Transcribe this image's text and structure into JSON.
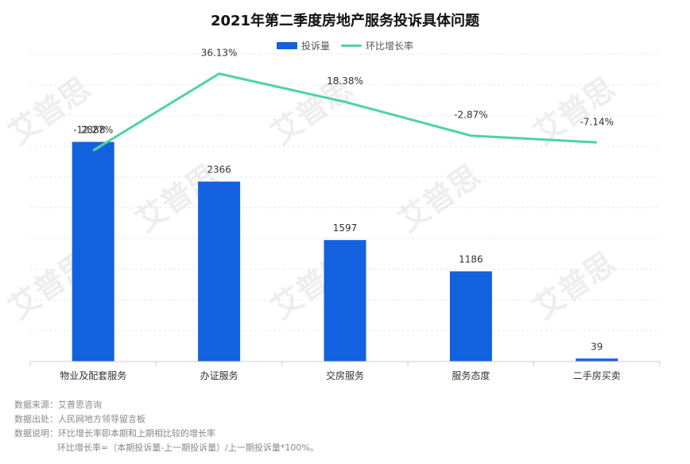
{
  "chart_data": {
    "type": "bar",
    "title": "2021年第二季度房地产服务投诉具体问题",
    "categories": [
      "物业及配套服务",
      "办证服务",
      "交房服务",
      "服务态度",
      "二手房买卖"
    ],
    "series": [
      {
        "name": "投诉量",
        "type": "bar",
        "values": [
          2888,
          2366,
          1597,
          1186,
          39
        ],
        "labels": [
          "2888",
          "2366",
          "1597",
          "1186",
          "39"
        ],
        "color": "#1461e0"
      },
      {
        "name": "环比增长率",
        "type": "line",
        "values": [
          -12.27,
          36.13,
          18.38,
          -2.87,
          -7.14
        ],
        "labels": [
          "-12.27%",
          "36.13%",
          "18.38%",
          "-2.87%",
          "-7.14%"
        ],
        "color": "#4fd3a4"
      }
    ],
    "legend_position": "top-center",
    "grid": true
  },
  "notes": [
    "数据来源：艾普思咨询",
    "数据出处：人民网地方领导留言板",
    "数据说明：环比增长率即本期和上期相比较的增长率",
    "环比增长率=（本期投诉量-上一期投诉量）/上一期投诉量*100%。"
  ],
  "watermark": "艾普思"
}
